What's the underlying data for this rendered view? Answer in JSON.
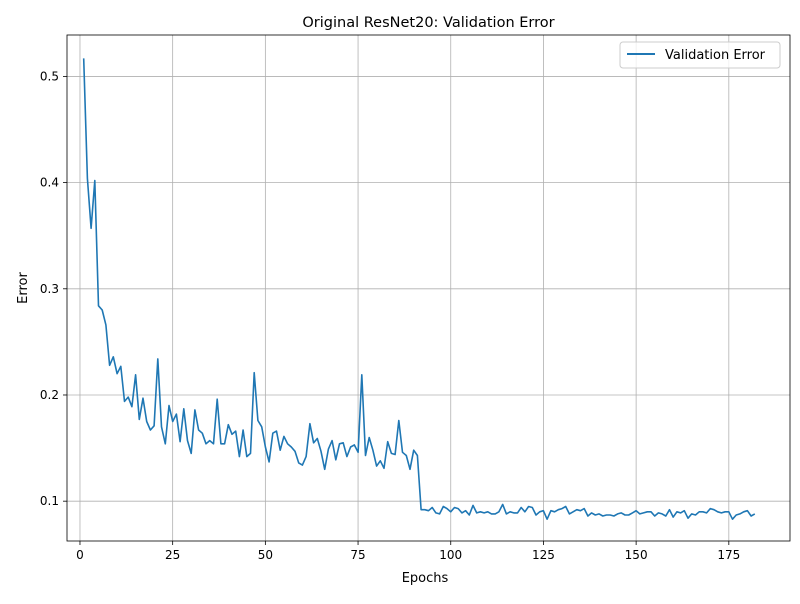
{
  "chart_data": {
    "type": "line",
    "title": "Original ResNet20: Validation Error",
    "xlabel": "Epochs",
    "ylabel": "Error",
    "xlim": [
      -3.5,
      191.5
    ],
    "ylim": [
      0.0625,
      0.539
    ],
    "xticks": [
      0,
      25,
      50,
      75,
      100,
      125,
      150,
      175
    ],
    "yticks": [
      0.1,
      0.2,
      0.3,
      0.4,
      0.5
    ],
    "xtick_labels": [
      "0",
      "25",
      "50",
      "75",
      "100",
      "125",
      "150",
      "175"
    ],
    "ytick_labels": [
      "0.1",
      "0.2",
      "0.3",
      "0.4",
      "0.5"
    ],
    "grid": true,
    "legend_position": "top-right",
    "series": [
      {
        "name": "Validation Error",
        "color": "#1f77b4",
        "x": [
          1,
          2,
          3,
          4,
          5,
          6,
          7,
          8,
          9,
          10,
          11,
          12,
          13,
          14,
          15,
          16,
          17,
          18,
          19,
          20,
          21,
          22,
          23,
          24,
          25,
          26,
          27,
          28,
          29,
          30,
          31,
          32,
          33,
          34,
          35,
          36,
          37,
          38,
          39,
          40,
          41,
          42,
          43,
          44,
          45,
          46,
          47,
          48,
          49,
          50,
          51,
          52,
          53,
          54,
          55,
          56,
          57,
          58,
          59,
          60,
          61,
          62,
          63,
          64,
          65,
          66,
          67,
          68,
          69,
          70,
          71,
          72,
          73,
          74,
          75,
          76,
          77,
          78,
          79,
          80,
          81,
          82,
          83,
          84,
          85,
          86,
          87,
          88,
          89,
          90,
          91,
          92,
          93,
          94,
          95,
          96,
          97,
          98,
          99,
          100,
          101,
          102,
          103,
          104,
          105,
          106,
          107,
          108,
          109,
          110,
          111,
          112,
          113,
          114,
          115,
          116,
          117,
          118,
          119,
          120,
          121,
          122,
          123,
          124,
          125,
          126,
          127,
          128,
          129,
          130,
          131,
          132,
          133,
          134,
          135,
          136,
          137,
          138,
          139,
          140,
          141,
          142,
          143,
          144,
          145,
          146,
          147,
          148,
          149,
          150,
          151,
          152,
          153,
          154,
          155,
          156,
          157,
          158,
          159,
          160,
          161,
          162,
          163,
          164,
          165,
          166,
          167,
          168,
          169,
          170,
          171,
          172,
          173,
          174,
          175,
          176,
          177,
          178,
          179,
          180,
          181,
          182
        ],
        "values": [
          0.517,
          0.404,
          0.357,
          0.402,
          0.284,
          0.28,
          0.266,
          0.228,
          0.236,
          0.22,
          0.227,
          0.194,
          0.198,
          0.189,
          0.219,
          0.177,
          0.197,
          0.175,
          0.167,
          0.171,
          0.234,
          0.17,
          0.154,
          0.19,
          0.175,
          0.182,
          0.156,
          0.187,
          0.157,
          0.145,
          0.186,
          0.167,
          0.164,
          0.154,
          0.157,
          0.154,
          0.196,
          0.154,
          0.154,
          0.172,
          0.163,
          0.166,
          0.142,
          0.167,
          0.142,
          0.145,
          0.221,
          0.176,
          0.17,
          0.151,
          0.137,
          0.164,
          0.166,
          0.148,
          0.161,
          0.154,
          0.151,
          0.147,
          0.136,
          0.134,
          0.142,
          0.173,
          0.155,
          0.159,
          0.147,
          0.13,
          0.149,
          0.157,
          0.139,
          0.154,
          0.155,
          0.142,
          0.151,
          0.153,
          0.146,
          0.219,
          0.143,
          0.16,
          0.148,
          0.133,
          0.138,
          0.131,
          0.156,
          0.145,
          0.144,
          0.176,
          0.146,
          0.143,
          0.13,
          0.148,
          0.143,
          0.092,
          0.092,
          0.091,
          0.094,
          0.089,
          0.088,
          0.095,
          0.093,
          0.09,
          0.094,
          0.093,
          0.089,
          0.091,
          0.087,
          0.096,
          0.089,
          0.09,
          0.089,
          0.09,
          0.088,
          0.088,
          0.09,
          0.097,
          0.088,
          0.09,
          0.089,
          0.089,
          0.094,
          0.09,
          0.095,
          0.094,
          0.087,
          0.09,
          0.091,
          0.083,
          0.091,
          0.09,
          0.092,
          0.093,
          0.095,
          0.088,
          0.09,
          0.092,
          0.091,
          0.093,
          0.086,
          0.089,
          0.087,
          0.088,
          0.086,
          0.087,
          0.087,
          0.086,
          0.088,
          0.089,
          0.087,
          0.087,
          0.089,
          0.091,
          0.088,
          0.089,
          0.09,
          0.09,
          0.086,
          0.089,
          0.088,
          0.086,
          0.092,
          0.085,
          0.09,
          0.089,
          0.091,
          0.084,
          0.088,
          0.087,
          0.09,
          0.09,
          0.089,
          0.093,
          0.092,
          0.09,
          0.089,
          0.09,
          0.09,
          0.083,
          0.087,
          0.088,
          0.09,
          0.091,
          0.086,
          0.088
        ]
      }
    ]
  }
}
